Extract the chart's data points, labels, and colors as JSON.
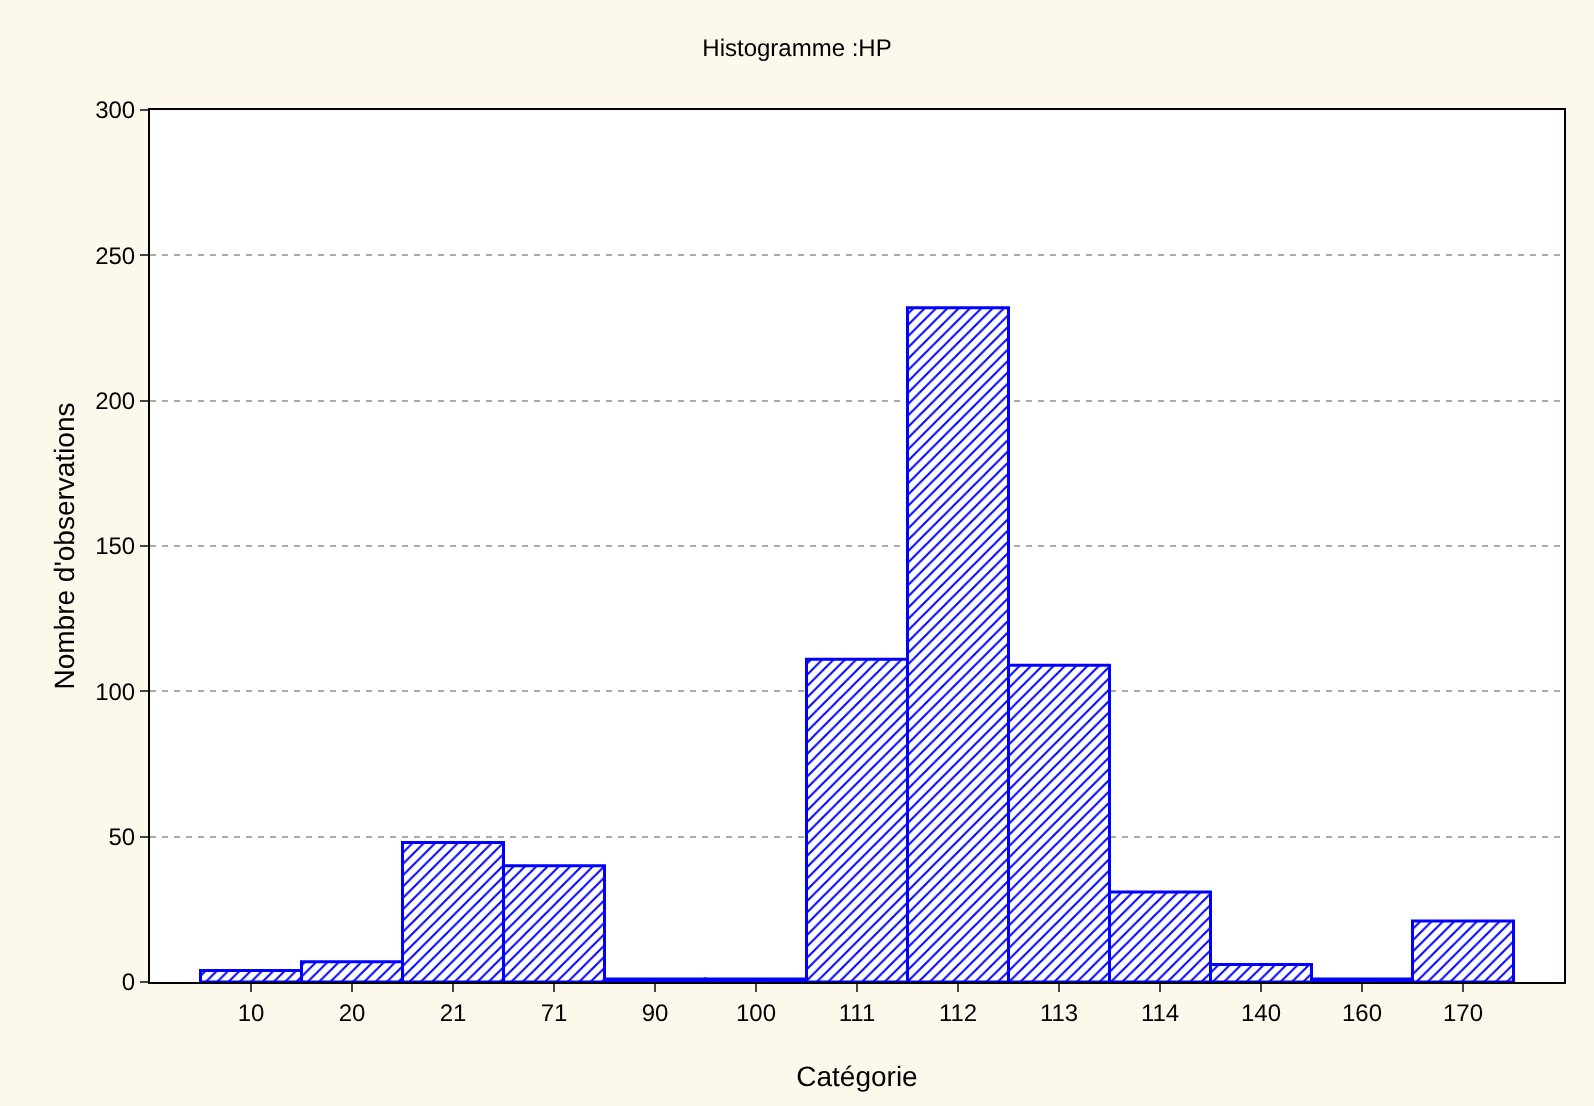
{
  "chart_data": {
    "type": "bar",
    "title": "Histogramme :HP",
    "xlabel": "Catégorie",
    "ylabel": "Nombre d'observations",
    "categories": [
      "10",
      "20",
      "21",
      "71",
      "90",
      "100",
      "111",
      "112",
      "113",
      "114",
      "140",
      "160",
      "170"
    ],
    "values": [
      4,
      7,
      48,
      40,
      1,
      1,
      111,
      232,
      109,
      31,
      6,
      1,
      21
    ],
    "color": "#0000ff",
    "ylim": [
      0,
      300
    ],
    "yticks": [
      0,
      50,
      100,
      150,
      200,
      250,
      300
    ],
    "grid": "y"
  }
}
